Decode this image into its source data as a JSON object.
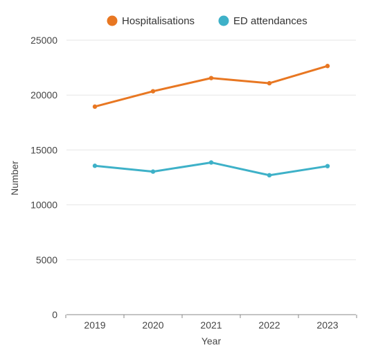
{
  "chart_data": {
    "type": "line",
    "title": "",
    "xlabel": "Year",
    "ylabel": "Number",
    "categories": [
      "2019",
      "2020",
      "2021",
      "2022",
      "2023"
    ],
    "ylim": [
      0,
      25000
    ],
    "yticks": [
      0,
      5000,
      10000,
      15000,
      20000,
      25000
    ],
    "grid": true,
    "legend_position": "top",
    "series": [
      {
        "name": "Hospitalisations",
        "color": "#e87722",
        "values": [
          18950,
          20350,
          21550,
          21080,
          22650
        ]
      },
      {
        "name": "ED attendances",
        "color": "#3eb1c8",
        "values": [
          13560,
          13030,
          13860,
          12700,
          13530
        ]
      }
    ]
  }
}
